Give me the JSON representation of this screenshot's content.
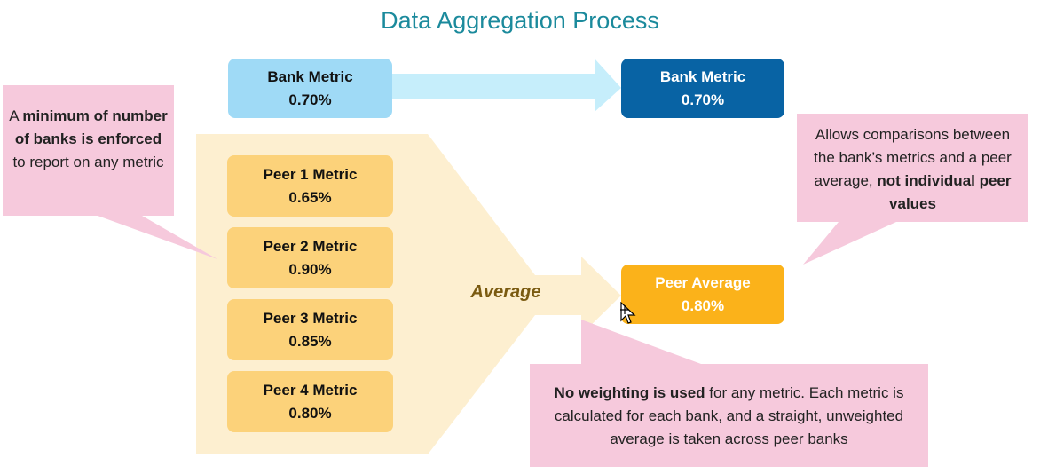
{
  "title": "Data Aggregation Process",
  "bank_source": {
    "label": "Bank Metric",
    "value": "0.70%"
  },
  "bank_output": {
    "label": "Bank Metric",
    "value": "0.70%"
  },
  "peers": [
    {
      "label": "Peer 1 Metric",
      "value": "0.65%"
    },
    {
      "label": "Peer 2 Metric",
      "value": "0.90%"
    },
    {
      "label": "Peer 3 Metric",
      "value": "0.85%"
    },
    {
      "label": "Peer 4 Metric",
      "value": "0.80%"
    }
  ],
  "aggregate_label": "Average",
  "peer_average": {
    "label": "Peer Average",
    "value": "0.80%"
  },
  "callouts": {
    "minimum": {
      "t1": "A ",
      "b1": "minimum of number of banks is enforced",
      "t2": " to report on any metric"
    },
    "comparison": {
      "t1": "Allows comparisons between the bank’s metrics and a peer average, ",
      "b1": "not individual peer values"
    },
    "weighting": {
      "b1": "No weighting is used",
      "t1": " for any metric. Each metric is calculated for each bank, and a straight, unweighted average is taken across peer banks"
    }
  },
  "colors": {
    "title": "#1b8a9c",
    "bank_source": "#9fdaf6",
    "bank_output": "#0863a4",
    "peer_box": "#fcd27a",
    "peer_average": "#fbb21a",
    "funnel": "#fdefd0",
    "callout": "#f6c9dc"
  },
  "icons": [
    "move-cursor-icon"
  ]
}
